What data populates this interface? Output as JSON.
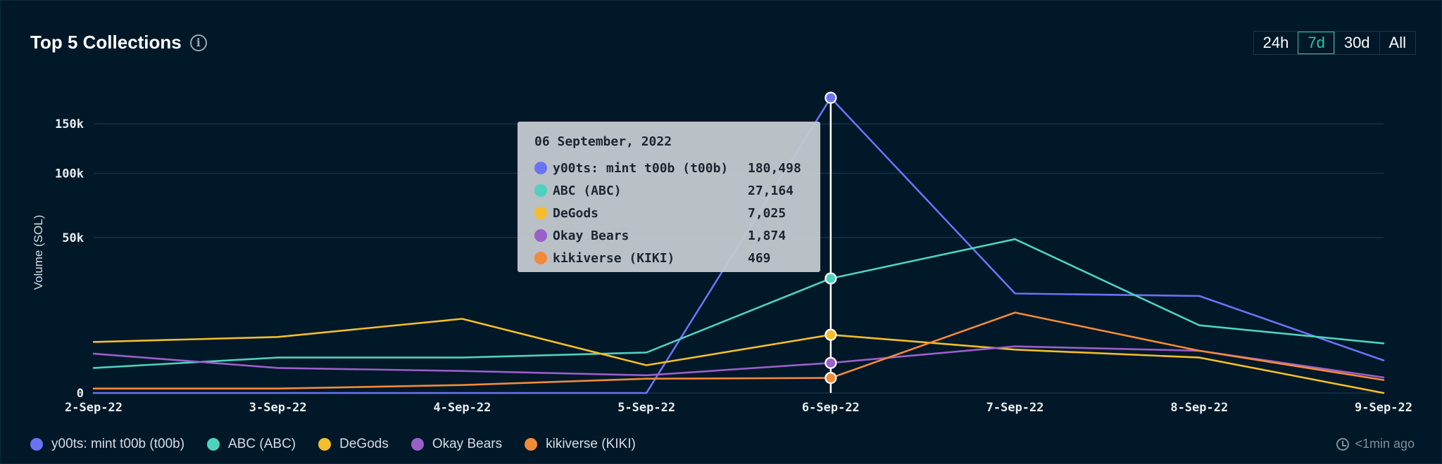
{
  "header": {
    "title": "Top 5 Collections",
    "ranges": [
      "24h",
      "7d",
      "30d",
      "All"
    ],
    "active_range": "7d"
  },
  "footer": {
    "updated": "<1min ago"
  },
  "colors": {
    "y00ts": "#6b73f5",
    "abc": "#4fd1c0",
    "degods": "#f5bd2c",
    "okay_bears": "#9b5fc9",
    "kikiverse": "#f28a3a",
    "grid": "#123246",
    "cursor": "#ffffff"
  },
  "chart_data": {
    "type": "line",
    "ylabel": "Volume (SOL)",
    "xlabel": "",
    "categories": [
      "2-Sep-22",
      "3-Sep-22",
      "4-Sep-22",
      "5-Sep-22",
      "6-Sep-22",
      "7-Sep-22",
      "8-Sep-22",
      "9-Sep-22"
    ],
    "y_ticks": [
      {
        "label": "0",
        "value": 0
      },
      {
        "label": "50k",
        "value": 50000
      },
      {
        "label": "100k",
        "value": 100000
      },
      {
        "label": "150k",
        "value": 150000
      }
    ],
    "y_scale": "sqrt",
    "ylim": [
      0,
      200000
    ],
    "series": [
      {
        "key": "y00ts",
        "name": "y00ts: mint t00b (t00b)",
        "values": [
          0,
          0,
          0,
          0,
          180498,
          20500,
          19500,
          2200
        ]
      },
      {
        "key": "abc",
        "name": "ABC (ABC)",
        "values": [
          1300,
          2600,
          2600,
          3400,
          27164,
          49000,
          9500,
          5100
        ]
      },
      {
        "key": "degods",
        "name": "DeGods",
        "values": [
          5400,
          6500,
          11400,
          1600,
          7025,
          3900,
          2600,
          0
        ]
      },
      {
        "key": "okay_bears",
        "name": "Okay Bears",
        "values": [
          3200,
          1300,
          1000,
          650,
          1874,
          4500,
          3700,
          500
        ]
      },
      {
        "key": "kikiverse",
        "name": "kikiverse (KIKI)",
        "values": [
          40,
          40,
          130,
          420,
          469,
          13400,
          3700,
          350
        ]
      }
    ],
    "highlight_index": 4,
    "tooltip": {
      "date": "06 September, 2022",
      "rows": [
        {
          "key": "y00ts",
          "name": "y00ts: mint t00b (t00b)",
          "value": "180,498"
        },
        {
          "key": "abc",
          "name": "ABC (ABC)",
          "value": "27,164"
        },
        {
          "key": "degods",
          "name": "DeGods",
          "value": "7,025"
        },
        {
          "key": "okay_bears",
          "name": "Okay Bears",
          "value": "1,874"
        },
        {
          "key": "kikiverse",
          "name": "kikiverse (KIKI)",
          "value": "469"
        }
      ]
    },
    "grid": true,
    "legend": "bottom-left"
  }
}
